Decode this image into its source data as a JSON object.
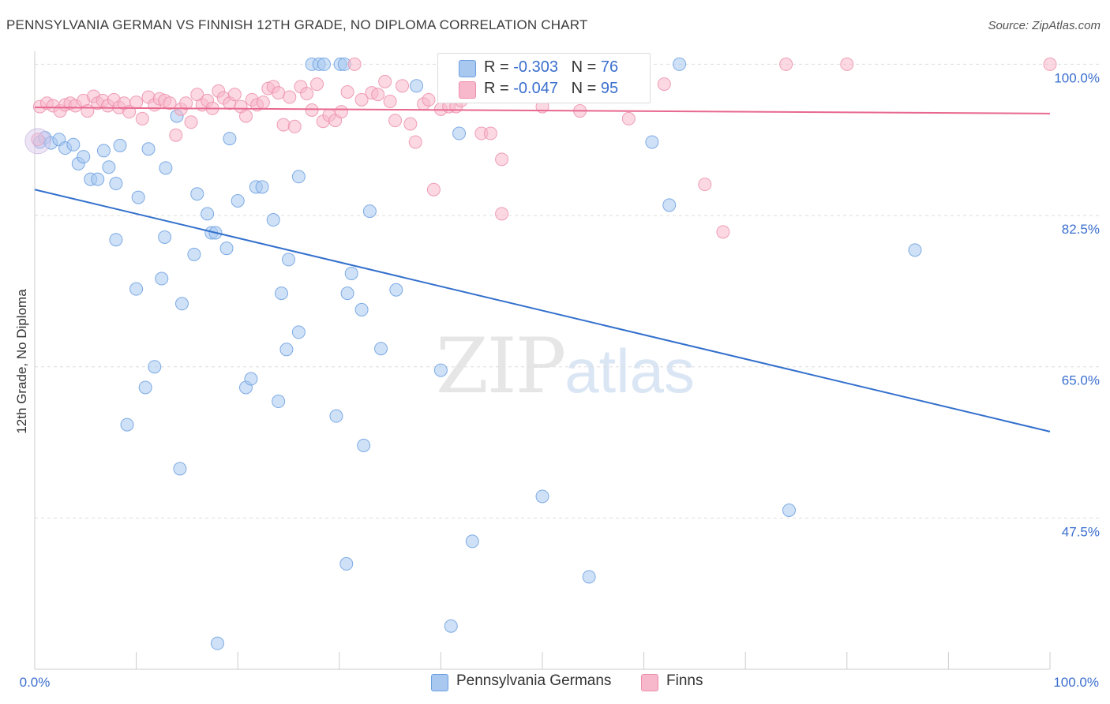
{
  "header": {
    "title": "PENNSYLVANIA GERMAN VS FINNISH 12TH GRADE, NO DIPLOMA CORRELATION CHART",
    "source": "Source: ZipAtlas.com"
  },
  "legend_top": {
    "rows": [
      {
        "r_label": "R = ",
        "r_value": "-0.303",
        "n_label": "N = ",
        "n_value": "76",
        "color": "#a8c8f0"
      },
      {
        "r_label": "R = ",
        "r_value": "-0.047",
        "n_label": "N = ",
        "n_value": "95",
        "color": "#f7b8cb"
      }
    ]
  },
  "legend_bottom": {
    "items": [
      {
        "label": "Pennsylvania Germans",
        "color": "#a8c8f0"
      },
      {
        "label": "Finns",
        "color": "#f7b8cb"
      }
    ]
  },
  "watermark": {
    "zip": "ZIP",
    "atlas": "atlas"
  },
  "chart_data": {
    "type": "scatter",
    "title": "PENNSYLVANIA GERMAN VS FINNISH 12TH GRADE, NO DIPLOMA CORRELATION CHART",
    "xlabel": "",
    "ylabel": "12th Grade, No Diploma",
    "xlim": [
      0,
      100
    ],
    "ylim": [
      30,
      101.5
    ],
    "x_tick_labels": [
      "0.0%",
      "100.0%"
    ],
    "y_ticks": [
      47.5,
      65.0,
      82.5,
      100.0
    ],
    "y_tick_labels": [
      "47.5%",
      "65.0%",
      "82.5%",
      "100.0%"
    ],
    "grid": "horizontal dashed",
    "legend_position": "top-center",
    "series": [
      {
        "name": "Pennsylvania Germans",
        "color": "#6b9fe0",
        "fill": "#a8c8f0",
        "trend": {
          "x": [
            0,
            100
          ],
          "y": [
            85.5,
            57.5
          ],
          "color": "#3370cc"
        },
        "points": [
          [
            0.5,
            91
          ],
          [
            1,
            91.5
          ],
          [
            1.6,
            90.9
          ],
          [
            2.4,
            91.3
          ],
          [
            3,
            90.3
          ],
          [
            3.8,
            90.7
          ],
          [
            4.3,
            88.5
          ],
          [
            4.8,
            89.3
          ],
          [
            5.5,
            86.7
          ],
          [
            6.2,
            86.7
          ],
          [
            6.8,
            90
          ],
          [
            7.3,
            88.1
          ],
          [
            8,
            86.2
          ],
          [
            8.4,
            90.6
          ],
          [
            10.2,
            84.6
          ],
          [
            11.2,
            90.2
          ],
          [
            12.9,
            88
          ],
          [
            14,
            94
          ],
          [
            16,
            85
          ],
          [
            17,
            82.7
          ],
          [
            19.2,
            91.4
          ],
          [
            20,
            84.2
          ],
          [
            21.8,
            85.8
          ],
          [
            22.4,
            85.8
          ],
          [
            23.5,
            82
          ],
          [
            26,
            87
          ],
          [
            27.3,
            100
          ],
          [
            28,
            100
          ],
          [
            28.5,
            100
          ],
          [
            30.1,
            100
          ],
          [
            30.5,
            100
          ],
          [
            33,
            83
          ],
          [
            37.6,
            97.5
          ],
          [
            41.8,
            92
          ],
          [
            60.8,
            91
          ],
          [
            62.5,
            83.7
          ],
          [
            63.5,
            100
          ],
          [
            86.7,
            78.5
          ],
          [
            8,
            79.7
          ],
          [
            12.8,
            80
          ],
          [
            15.7,
            78
          ],
          [
            17.4,
            80.5
          ],
          [
            17.8,
            80.5
          ],
          [
            18.9,
            78.7
          ],
          [
            25,
            77.4
          ],
          [
            10,
            74
          ],
          [
            12.5,
            75.2
          ],
          [
            14.5,
            72.3
          ],
          [
            24.3,
            73.5
          ],
          [
            30.8,
            73.5
          ],
          [
            31.2,
            75.8
          ],
          [
            32.2,
            71.6
          ],
          [
            35.6,
            73.9
          ],
          [
            26,
            69
          ],
          [
            24.8,
            67
          ],
          [
            34.1,
            67.1
          ],
          [
            11.8,
            65
          ],
          [
            10.9,
            62.6
          ],
          [
            20.8,
            62.6
          ],
          [
            21.3,
            63.6
          ],
          [
            24,
            61
          ],
          [
            40,
            64.6
          ],
          [
            29.7,
            59.3
          ],
          [
            9.1,
            58.3
          ],
          [
            32.4,
            55.9
          ],
          [
            14.3,
            53.2
          ],
          [
            50,
            50
          ],
          [
            74.3,
            48.4
          ],
          [
            43.1,
            44.8
          ],
          [
            30.7,
            42.2
          ],
          [
            54.6,
            40.7
          ],
          [
            41,
            35
          ],
          [
            18,
            33
          ]
        ]
      },
      {
        "name": "Finns",
        "color": "#ec8fab",
        "fill": "#f7b8cb",
        "trend": {
          "x": [
            0,
            100
          ],
          "y": [
            95.0,
            94.3
          ],
          "color": "#e8688f"
        },
        "points": [
          [
            0.3,
            91.3
          ],
          [
            0.5,
            95.1
          ],
          [
            1.2,
            95.5
          ],
          [
            1.8,
            95.2
          ],
          [
            2.5,
            94.6
          ],
          [
            3,
            95.3
          ],
          [
            3.5,
            95.5
          ],
          [
            4,
            95.2
          ],
          [
            4.8,
            95.8
          ],
          [
            5.2,
            94.6
          ],
          [
            5.8,
            96.3
          ],
          [
            6.2,
            95.5
          ],
          [
            6.7,
            95.8
          ],
          [
            7.2,
            95.2
          ],
          [
            7.8,
            95.9
          ],
          [
            8.3,
            95
          ],
          [
            8.8,
            95.5
          ],
          [
            9.3,
            94.5
          ],
          [
            10,
            95.6
          ],
          [
            10.6,
            93.7
          ],
          [
            11.2,
            96.2
          ],
          [
            11.8,
            95.3
          ],
          [
            12.3,
            96
          ],
          [
            12.8,
            95.8
          ],
          [
            13.3,
            95.5
          ],
          [
            13.9,
            91.8
          ],
          [
            14.4,
            94.8
          ],
          [
            14.9,
            95.5
          ],
          [
            15.4,
            93.3
          ],
          [
            16,
            96.5
          ],
          [
            16.5,
            95.3
          ],
          [
            17,
            95.8
          ],
          [
            17.5,
            94.9
          ],
          [
            18.1,
            96.9
          ],
          [
            18.6,
            96.1
          ],
          [
            19.2,
            95.5
          ],
          [
            19.7,
            96.5
          ],
          [
            20.3,
            95.1
          ],
          [
            20.8,
            94
          ],
          [
            21.4,
            95.9
          ],
          [
            21.9,
            95.3
          ],
          [
            22.5,
            95.6
          ],
          [
            23,
            97.2
          ],
          [
            23.5,
            97.4
          ],
          [
            24,
            96.7
          ],
          [
            24.5,
            93
          ],
          [
            25.1,
            96.2
          ],
          [
            25.6,
            92.8
          ],
          [
            26.2,
            97.4
          ],
          [
            26.8,
            96.6
          ],
          [
            27.3,
            94.7
          ],
          [
            27.8,
            97.7
          ],
          [
            28.4,
            93.4
          ],
          [
            29,
            94.1
          ],
          [
            29.6,
            93.5
          ],
          [
            30.2,
            94.5
          ],
          [
            30.8,
            96.8
          ],
          [
            31.5,
            100
          ],
          [
            32.2,
            95.9
          ],
          [
            33.2,
            96.7
          ],
          [
            33.8,
            96.5
          ],
          [
            34.5,
            98
          ],
          [
            35,
            95.7
          ],
          [
            35.5,
            93.5
          ],
          [
            36.2,
            97.5
          ],
          [
            37,
            93.1
          ],
          [
            37.5,
            91
          ],
          [
            38.3,
            95.4
          ],
          [
            38.8,
            95.9
          ],
          [
            39.3,
            85.5
          ],
          [
            40,
            94.8
          ],
          [
            40.8,
            95.1
          ],
          [
            41.5,
            95.1
          ],
          [
            42,
            95.8
          ],
          [
            43,
            98.9
          ],
          [
            44,
            92
          ],
          [
            44.9,
            92
          ],
          [
            46,
            89
          ],
          [
            46,
            82.7
          ],
          [
            48.6,
            100
          ],
          [
            50,
            95.1
          ],
          [
            53.7,
            94.6
          ],
          [
            56,
            100
          ],
          [
            58.5,
            93.7
          ],
          [
            59,
            100
          ],
          [
            60,
            100
          ],
          [
            62,
            97.7
          ],
          [
            66,
            86.1
          ],
          [
            67.8,
            80.6
          ],
          [
            74,
            100
          ],
          [
            80,
            100
          ],
          [
            100,
            100
          ]
        ]
      }
    ]
  }
}
